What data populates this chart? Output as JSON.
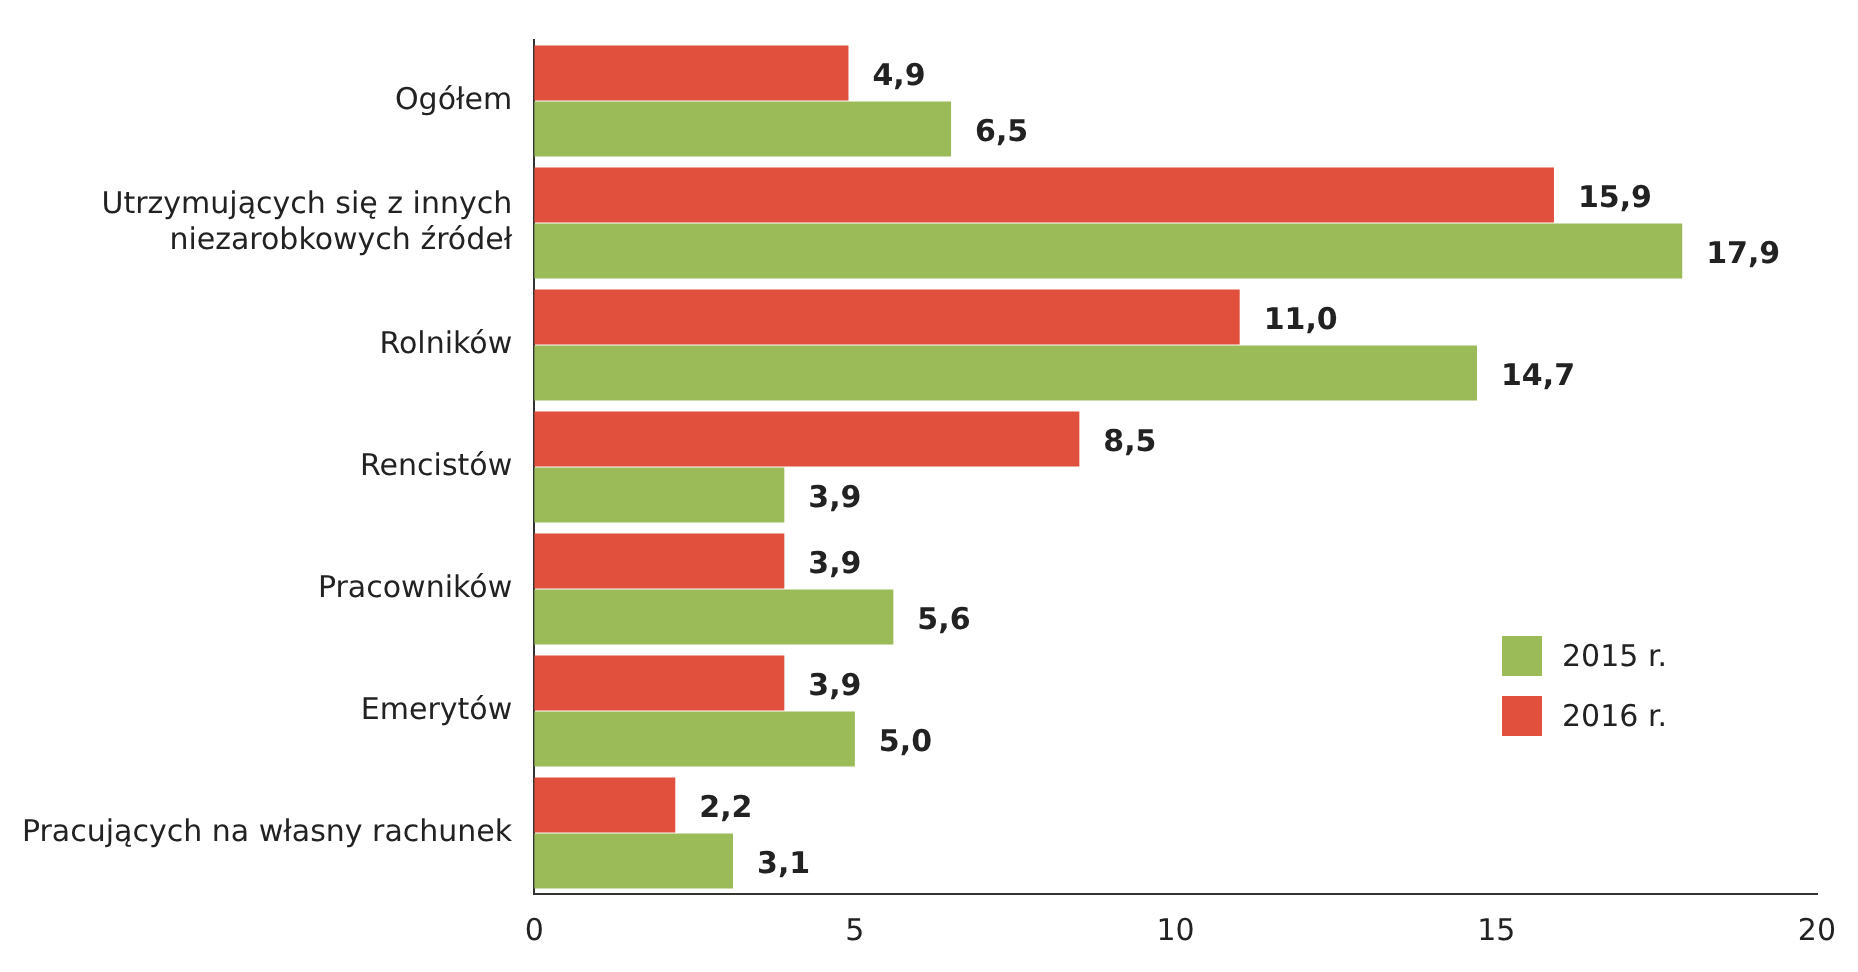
{
  "chart_data": {
    "type": "bar",
    "orientation": "horizontal",
    "categories": [
      "Ogółem",
      "Utrzymujących się z innych niezarobkowych źródeł",
      "Rolników",
      "Rencistów",
      "Pracowników",
      "Emerytów",
      "Pracujących na własny rachunek"
    ],
    "series": [
      {
        "name": "2016 r.",
        "color": "#e0503c",
        "values": [
          4.9,
          15.9,
          11.0,
          8.5,
          3.9,
          3.9,
          2.2
        ],
        "value_labels": [
          "4,9",
          "15,9",
          "11,0",
          "8,5",
          "3,9",
          "3,9",
          "2,2"
        ]
      },
      {
        "name": "2015 r.",
        "color": "#9bbb59",
        "values": [
          6.5,
          17.9,
          14.7,
          3.9,
          5.6,
          5.0,
          3.1
        ],
        "value_labels": [
          "6,5",
          "17,9",
          "14,7",
          "3,9",
          "5,6",
          "5,0",
          "3,1"
        ]
      }
    ],
    "xlim": [
      0,
      20
    ],
    "xticks": [
      0,
      5,
      10,
      15,
      20
    ],
    "grid": false,
    "legend": "right"
  }
}
